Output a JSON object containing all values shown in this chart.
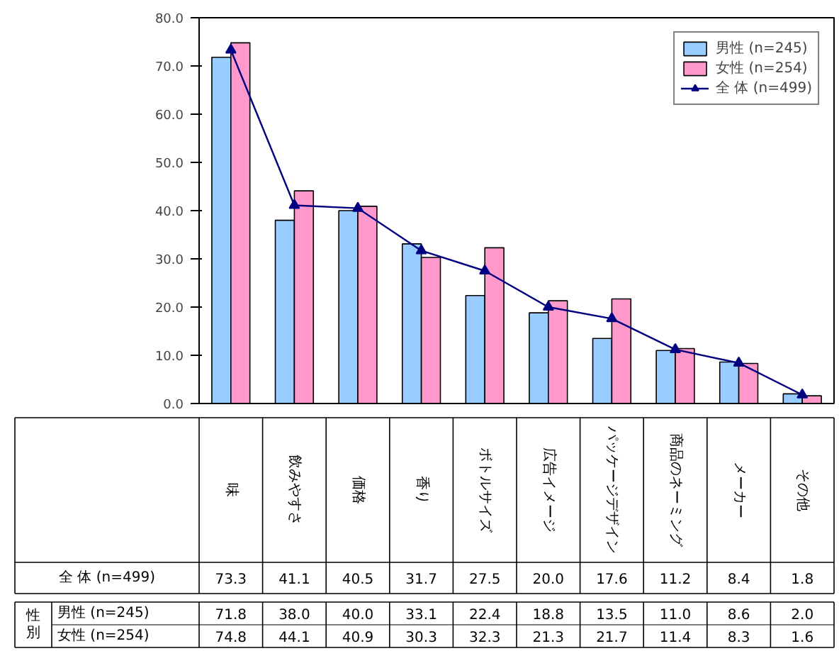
{
  "chart_data": {
    "type": "bar",
    "categories": [
      "味",
      "飲みやすさ",
      "価格",
      "香り",
      "ボトルサイズ",
      "広告イメージ",
      "パッケージデザイン",
      "商品のネーミング",
      "メーカー",
      "その他"
    ],
    "series": [
      {
        "name": "男性 (n=245)",
        "color": "#99ccff",
        "values": [
          71.8,
          38.0,
          40.0,
          33.1,
          22.4,
          18.8,
          13.5,
          11.0,
          8.6,
          2.0
        ],
        "value_labels": [
          "71.8",
          "38.0",
          "40.0",
          "33.1",
          "22.4",
          "18.8",
          "13.5",
          "11.0",
          "8.6",
          "2.0"
        ]
      },
      {
        "name": "女性 (n=254)",
        "color": "#ff99cc",
        "values": [
          74.8,
          44.1,
          40.9,
          30.3,
          32.3,
          21.3,
          21.7,
          11.4,
          8.3,
          1.6
        ],
        "value_labels": [
          "74.8",
          "44.1",
          "40.9",
          "30.3",
          "32.3",
          "21.3",
          "21.7",
          "11.4",
          "8.3",
          "1.6"
        ]
      },
      {
        "name": "全 体 (n=499)",
        "type": "line",
        "color": "#000080",
        "marker": "triangle",
        "values": [
          73.3,
          41.1,
          40.5,
          31.7,
          27.5,
          20.0,
          17.6,
          11.2,
          8.4,
          1.8
        ],
        "value_labels": [
          "73.3",
          "41.1",
          "40.5",
          "31.7",
          "27.5",
          "20.0",
          "17.6",
          "11.2",
          "8.4",
          "1.8"
        ]
      }
    ],
    "ylim": [
      0,
      80
    ],
    "yticks": [
      {
        "value": 0,
        "label": "0.0"
      },
      {
        "value": 10,
        "label": "10.0"
      },
      {
        "value": 20,
        "label": "20.0"
      },
      {
        "value": 30,
        "label": "30.0"
      },
      {
        "value": 40,
        "label": "40.0"
      },
      {
        "value": 50,
        "label": "50.0"
      },
      {
        "value": 60,
        "label": "60.0"
      },
      {
        "value": 70,
        "label": "70.0"
      },
      {
        "value": 80,
        "label": "80.0"
      }
    ],
    "tick_labels": "y",
    "grid": false,
    "legend": "top right",
    "annotations": [
      "性別"
    ]
  }
}
